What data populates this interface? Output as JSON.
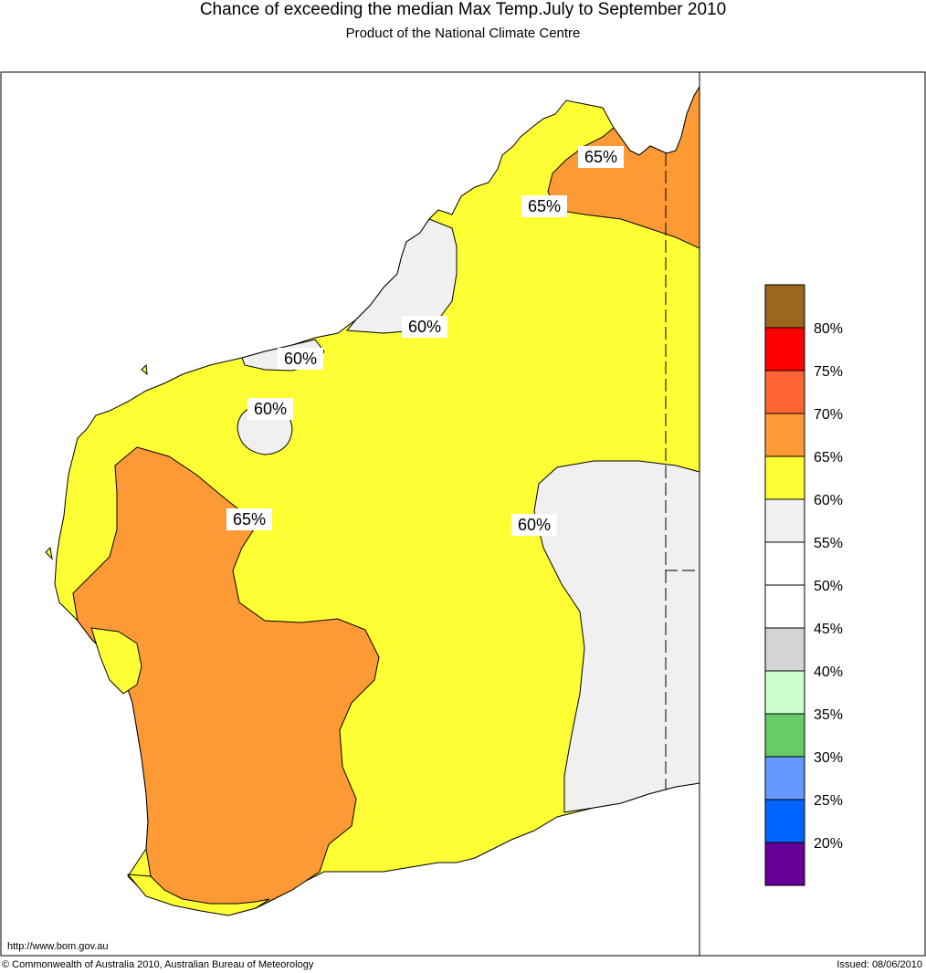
{
  "header": {
    "title": "Chance of exceeding the median Max Temp.July to September 2010",
    "subtitle": "Product of the National Climate Centre"
  },
  "map": {
    "contour_labels": [
      "65%",
      "65%",
      "60%",
      "60%",
      "60%",
      "65%",
      "60%"
    ],
    "colors": {
      "65-70": "#fe9a35",
      "60-65": "#fefe35",
      "55-60": "#f0f0f0",
      "sea": "#ffffff"
    }
  },
  "legend": {
    "labels": [
      "80%",
      "75%",
      "70%",
      "65%",
      "60%",
      "55%",
      "50%",
      "45%",
      "40%",
      "35%",
      "30%",
      "25%",
      "20%"
    ],
    "colors": [
      "#9b6620",
      "#fe0000",
      "#fe6533",
      "#fe9a35",
      "#fefe35",
      "#f0f0f0",
      "#ffffff",
      "#ffffff",
      "#d4d4d4",
      "#ccffcc",
      "#66cc66",
      "#6699ff",
      "#0066ff",
      "#660099"
    ]
  },
  "footer": {
    "url": "http://www.bom.gov.au",
    "copyright": "© Commonwealth of Australia 2010, Australian Bureau of Meteorology",
    "issued": "Issued: 08/06/2010"
  }
}
